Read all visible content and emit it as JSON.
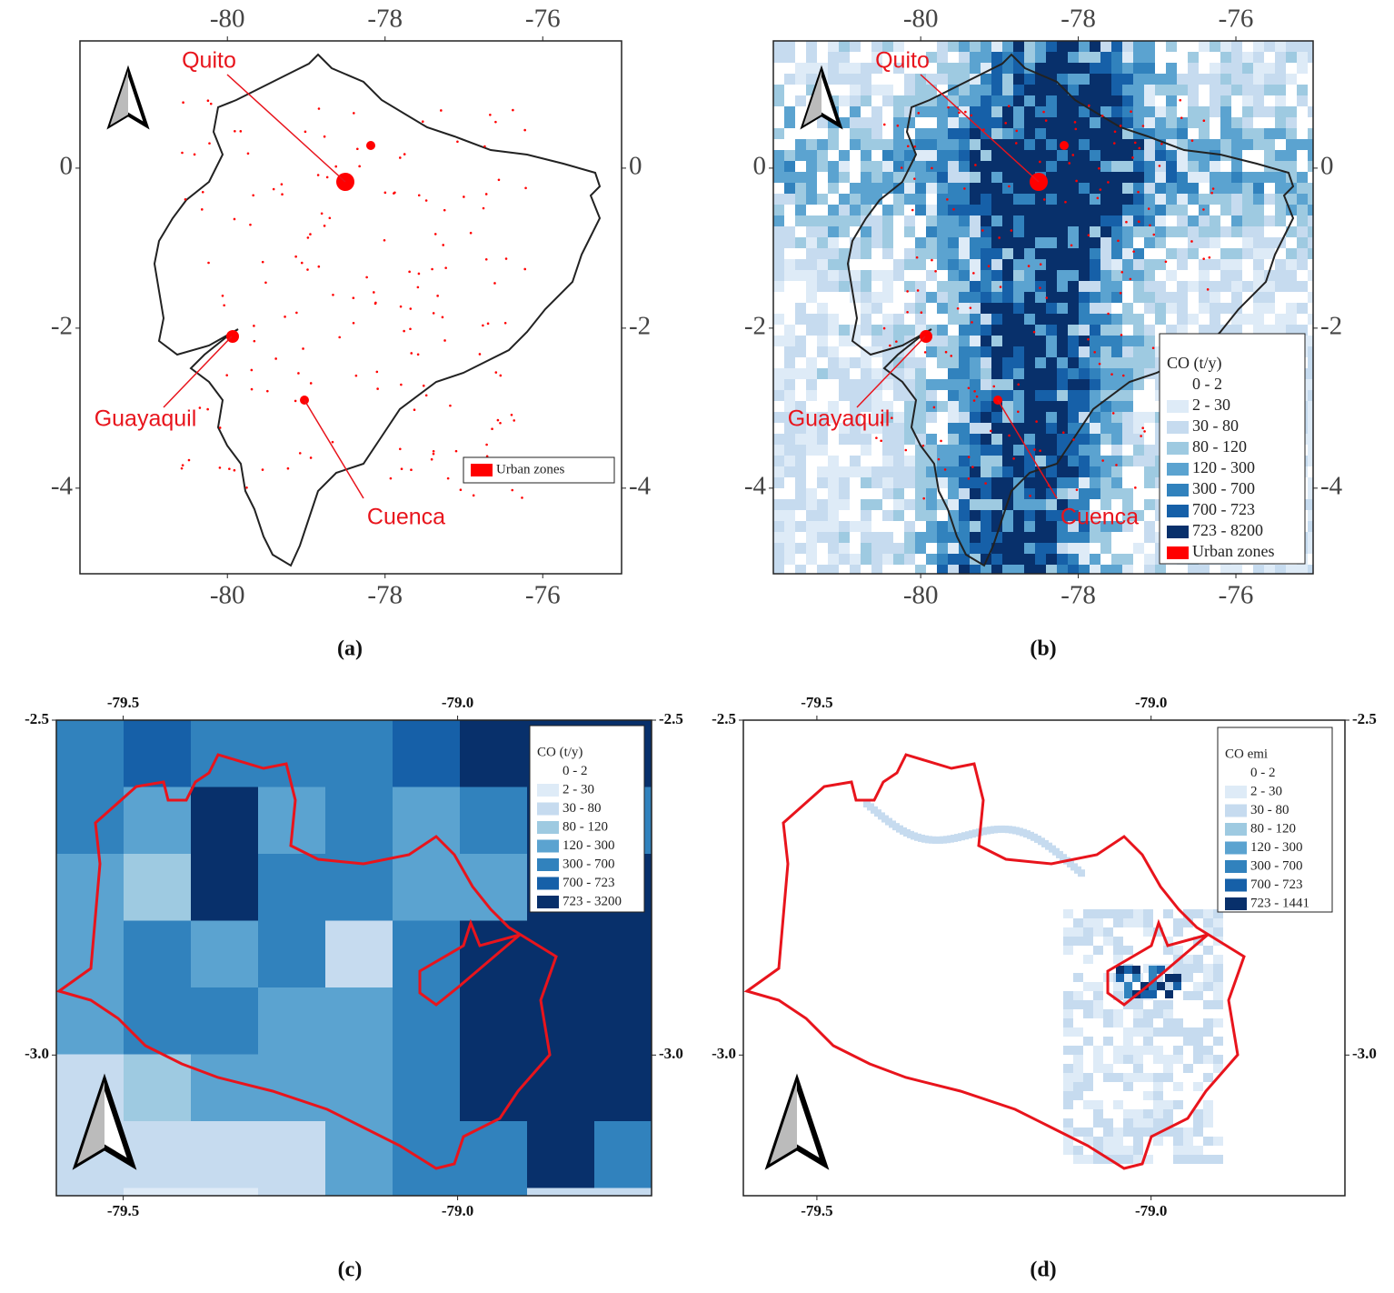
{
  "panels": [
    {
      "label": "(a)",
      "xlim": [
        -81.87,
        -75.0
      ],
      "ylim": [
        -5.07,
        1.59
      ],
      "xticks": [
        -80,
        -78,
        -76
      ],
      "yticks": [
        0,
        -2,
        -4
      ],
      "annotations": [
        "Quito",
        "Guayaquil",
        "Cuenca"
      ],
      "legend": {
        "entries": [
          {
            "label": "Urban zones",
            "color": "#ff0000"
          }
        ]
      }
    },
    {
      "label": "(b)",
      "xlim": [
        -81.87,
        -75.02
      ],
      "ylim": [
        -5.07,
        1.59
      ],
      "xticks": [
        -80,
        -78,
        -76
      ],
      "yticks": [
        0,
        -2,
        -4
      ],
      "annotations": [
        "Quito",
        "Guayaquil",
        "Cuenca"
      ],
      "legend": {
        "title": "CO (t/y)",
        "entries": [
          {
            "label": "0 - 2",
            "color": "#ffffff"
          },
          {
            "label": "2 - 30",
            "color": "#deebf7"
          },
          {
            "label": "30 - 80",
            "color": "#c6dbef"
          },
          {
            "label": "80 - 120",
            "color": "#9ecae1"
          },
          {
            "label": "120 - 300",
            "color": "#5ba3d0"
          },
          {
            "label": "300 - 700",
            "color": "#3182bd"
          },
          {
            "label": "700 - 723",
            "color": "#1660a8"
          },
          {
            "label": "723 - 8200",
            "color": "#08306b"
          },
          {
            "label": "Urban zones",
            "color": "#ff0000"
          }
        ]
      }
    },
    {
      "label": "(c)",
      "xlim": [
        -79.6,
        -78.71
      ],
      "ylim": [
        -3.21,
        -2.5
      ],
      "xticks": [
        -79.5,
        {
          "value": -79,
          "label": "-79.0"
        }
      ],
      "yticks": [
        -2.5,
        {
          "value": -3,
          "label": "-3.0"
        }
      ],
      "legend": {
        "title": "CO (t/y)",
        "entries": [
          {
            "label": "0 - 2",
            "color": "#ffffff"
          },
          {
            "label": "2 - 30",
            "color": "#deebf7"
          },
          {
            "label": "30 - 80",
            "color": "#c6dbef"
          },
          {
            "label": "80 - 120",
            "color": "#9ecae1"
          },
          {
            "label": "120 - 300",
            "color": "#5ba3d0"
          },
          {
            "label": "300 - 700",
            "color": "#3182bd"
          },
          {
            "label": "700 - 723",
            "color": "#1660a8"
          },
          {
            "label": "723 - 3200",
            "color": "#08306b"
          }
        ]
      }
    },
    {
      "label": "(d)",
      "xlim": [
        -79.61,
        -78.71
      ],
      "ylim": [
        -3.21,
        -2.5
      ],
      "xticks": [
        -79.5,
        {
          "value": -79,
          "label": "-79.0"
        }
      ],
      "yticks": [
        -2.5,
        {
          "value": -3,
          "label": "-3.0"
        }
      ],
      "legend": {
        "title": "CO emi",
        "entries": [
          {
            "label": "0 - 2",
            "color": "#ffffff"
          },
          {
            "label": "2 - 30",
            "color": "#deebf7"
          },
          {
            "label": "30 - 80",
            "color": "#c6dbef"
          },
          {
            "label": "80 - 120",
            "color": "#9ecae1"
          },
          {
            "label": "120 - 300",
            "color": "#5ba3d0"
          },
          {
            "label": "300 - 700",
            "color": "#3182bd"
          },
          {
            "label": "700 - 723",
            "color": "#1660a8"
          },
          {
            "label": "723 - 1441",
            "color": "#08306b"
          }
        ]
      }
    }
  ]
}
